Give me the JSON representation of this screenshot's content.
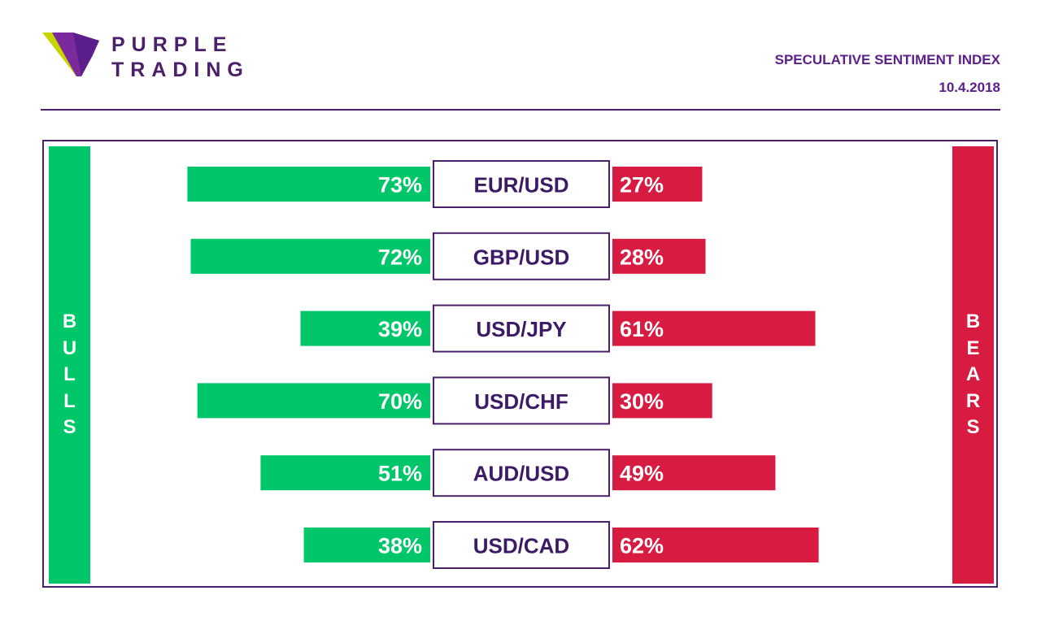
{
  "brand": {
    "line1": "PURPLE",
    "line2": "TRADING"
  },
  "header": {
    "title": "SPECULATIVE SENTIMENT INDEX",
    "date": "10.4.2018"
  },
  "colors": {
    "bulls": "#00c66a",
    "bears": "#d81b40",
    "frame": "#4a2068",
    "pair_text": "#3d1a66"
  },
  "chart_data": {
    "type": "bar",
    "title": "SPECULATIVE SENTIMENT INDEX",
    "categories": [
      "EUR/USD",
      "GBP/USD",
      "USD/JPY",
      "USD/CHF",
      "AUD/USD",
      "USD/CAD"
    ],
    "series": [
      {
        "name": "BULLS",
        "values": [
          73,
          72,
          39,
          70,
          51,
          38
        ]
      },
      {
        "name": "BEARS",
        "values": [
          27,
          28,
          61,
          30,
          49,
          62
        ]
      }
    ],
    "value_suffix": "%",
    "ylim": [
      0,
      100
    ]
  }
}
